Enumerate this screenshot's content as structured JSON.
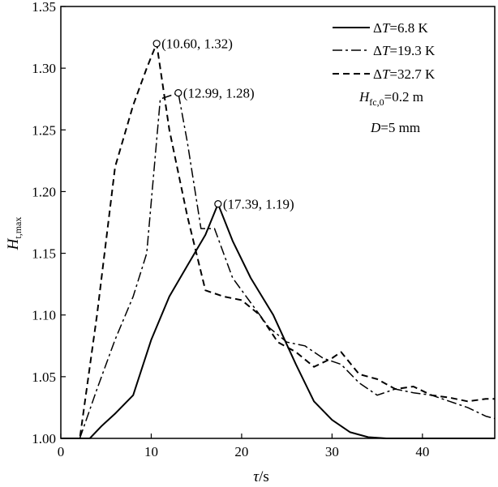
{
  "chart_data": {
    "type": "line",
    "xlabel": {
      "symbol": "τ",
      "unit": "/s"
    },
    "ylabel": {
      "symbol": "H",
      "subscript": "t,max"
    },
    "xlim": [
      0,
      48
    ],
    "ylim": [
      1.0,
      1.35
    ],
    "xticks": [
      0,
      10,
      20,
      30,
      40
    ],
    "yticks": [
      1.0,
      1.05,
      1.1,
      1.15,
      1.2,
      1.25,
      1.3,
      1.35
    ],
    "ytick_labels": [
      "1.00",
      "1.05",
      "1.10",
      "1.15",
      "1.20",
      "1.25",
      "1.30",
      "1.35"
    ],
    "legend_position": "top-right",
    "series": [
      {
        "name": "ΔT=6.8 K",
        "name_parts": {
          "prefix": "Δ",
          "var": "T",
          "rest": "=6.8 K"
        },
        "style": "solid",
        "x": [
          0,
          3.2,
          4.5,
          6,
          8,
          10,
          12,
          14,
          16,
          17.39,
          19,
          21,
          23.5,
          26,
          28,
          30,
          32,
          34,
          36,
          40,
          44,
          47,
          48
        ],
        "y": [
          1.0,
          1.0,
          1.01,
          1.02,
          1.035,
          1.08,
          1.115,
          1.14,
          1.165,
          1.19,
          1.16,
          1.13,
          1.1,
          1.06,
          1.03,
          1.015,
          1.005,
          1.001,
          1.0,
          1.0,
          1.0,
          1.0,
          1.0
        ]
      },
      {
        "name": "ΔT=19.3 K",
        "name_parts": {
          "prefix": "Δ",
          "var": "T",
          "rest": "=19.3 K"
        },
        "style": "dashdot",
        "x": [
          0,
          2.1,
          4,
          6,
          8,
          9.5,
          11,
          12.99,
          14,
          15.5,
          17,
          19,
          21,
          23,
          25,
          27,
          29,
          31,
          33,
          35,
          37,
          39,
          41,
          43,
          45,
          47,
          48
        ],
        "y": [
          1.0,
          1.0,
          1.04,
          1.08,
          1.115,
          1.15,
          1.275,
          1.28,
          1.24,
          1.17,
          1.17,
          1.13,
          1.11,
          1.09,
          1.078,
          1.075,
          1.065,
          1.06,
          1.045,
          1.035,
          1.04,
          1.037,
          1.035,
          1.03,
          1.025,
          1.018,
          1.016
        ]
      },
      {
        "name": "ΔT=32.7 K",
        "name_parts": {
          "prefix": "Δ",
          "var": "T",
          "rest": "=32.7 K"
        },
        "style": "dashed",
        "x": [
          0,
          2.1,
          4,
          6,
          8,
          9.5,
          10.6,
          12,
          14,
          16,
          18,
          20,
          22,
          24,
          26,
          28,
          30,
          31,
          33,
          35,
          37,
          39,
          41,
          43,
          45,
          47,
          48
        ],
        "y": [
          1.0,
          1.0,
          1.1,
          1.22,
          1.27,
          1.3,
          1.32,
          1.25,
          1.18,
          1.12,
          1.115,
          1.112,
          1.1,
          1.078,
          1.07,
          1.058,
          1.065,
          1.07,
          1.052,
          1.048,
          1.04,
          1.042,
          1.035,
          1.033,
          1.03,
          1.032,
          1.032
        ]
      }
    ],
    "annotations": [
      {
        "x": 10.6,
        "y": 1.32,
        "text": "(10.60, 1.32)"
      },
      {
        "x": 12.99,
        "y": 1.28,
        "text": "(12.99, 1.28)"
      },
      {
        "x": 17.39,
        "y": 1.19,
        "text": "(17.39, 1.19)"
      }
    ],
    "notes": [
      {
        "symbol": "H",
        "subscript": "fc,0",
        "rest": "=0.2 m"
      },
      {
        "symbol": "D",
        "subscript": "",
        "rest": "=5 mm"
      }
    ]
  }
}
